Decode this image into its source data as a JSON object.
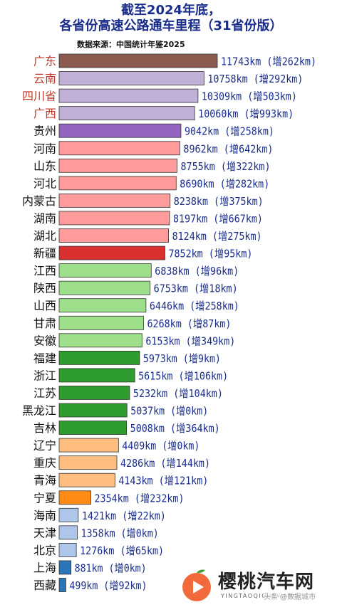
{
  "chart_data": {
    "type": "bar",
    "orientation": "horizontal",
    "title": "截至2024年底，",
    "subtitle": "各省份高速公路通车里程（31省份版）",
    "source": "数据来源：中国统计年鉴2025",
    "unit": "km",
    "categories": [
      "广东",
      "云南",
      "四川省",
      "广西",
      "贵州",
      "河南",
      "山东",
      "河北",
      "内蒙古",
      "湖南",
      "湖北",
      "新疆",
      "江西",
      "陕西",
      "山西",
      "甘肃",
      "安徽",
      "福建",
      "浙江",
      "江苏",
      "黑龙江",
      "吉林",
      "辽宁",
      "重庆",
      "青海",
      "宁夏",
      "海南",
      "天津",
      "北京",
      "上海",
      "西藏"
    ],
    "values": [
      11743,
      10758,
      10309,
      10060,
      9042,
      8962,
      8755,
      8690,
      8238,
      8197,
      8124,
      7852,
      6838,
      6753,
      6446,
      6268,
      6153,
      5973,
      5615,
      5232,
      5037,
      5008,
      4409,
      4286,
      4143,
      2354,
      1421,
      1358,
      1276,
      881,
      499
    ],
    "increase": [
      262,
      292,
      503,
      993,
      258,
      642,
      322,
      282,
      375,
      667,
      275,
      95,
      96,
      18,
      258,
      87,
      349,
      9,
      106,
      104,
      0,
      364,
      0,
      144,
      121,
      232,
      22,
      0,
      65,
      0,
      92
    ],
    "labels": [
      "11743km (增262km)",
      "10758km (增292km)",
      "10309km (增503km)",
      "10060km (增993km)",
      "9042km (增258km)",
      "8962km (增642km)",
      "8755km (增322km)",
      "8690km (增282km)",
      "8238km (增375km)",
      "8197km (增667km)",
      "8124km (增275km)",
      "7852km (增95km)",
      "6838km (增96km)",
      "6753km (增18km)",
      "6446km (增258km)",
      "6268km (增87km)",
      "6153km (增349km)",
      "5973km (增9km)",
      "5615km (增106km)",
      "5232km (增104km)",
      "5037km (增0km)",
      "5008km (增364km)",
      "4409km (增0km)",
      "4286km (增144km)",
      "4143km (增121km)",
      "2354km (增232km)",
      "1421km (增22km)",
      "1358km (增0km)",
      "1276km (增65km)",
      "881km (增0km)",
      "499km (增92km)"
    ],
    "colors": [
      "#8c5b50",
      "#c0b0d8",
      "#c0b0d8",
      "#c0b0d8",
      "#9364c0",
      "#ff9b9b",
      "#ff9b9b",
      "#ff9b9b",
      "#ff9b9b",
      "#ff9b9b",
      "#ff9b9b",
      "#d92f2f",
      "#9ddf8a",
      "#9ddf8a",
      "#9ddf8a",
      "#9ddf8a",
      "#9ddf8a",
      "#2e9c2e",
      "#2e9c2e",
      "#2e9c2e",
      "#2e9c2e",
      "#2e9c2e",
      "#ffbe80",
      "#ffbe80",
      "#ffbe80",
      "#ff8a14",
      "#aec6ea",
      "#aec6ea",
      "#aec6ea",
      "#2a76b8",
      "#2a76b8"
    ],
    "label_colors": [
      "#c0392b",
      "#c0392b",
      "#c0392b",
      "#c0392b",
      "#111111",
      "#111111",
      "#111111",
      "#111111",
      "#111111",
      "#111111",
      "#111111",
      "#111111",
      "#111111",
      "#111111",
      "#111111",
      "#111111",
      "#111111",
      "#111111",
      "#111111",
      "#111111",
      "#111111",
      "#111111",
      "#111111",
      "#111111",
      "#111111",
      "#111111",
      "#111111",
      "#111111",
      "#111111",
      "#111111",
      "#111111"
    ],
    "value_label_color": "#1a2d8c",
    "grid": false,
    "legend": "none"
  },
  "watermark": {
    "text": "樱桃汽车网",
    "sub": "YINGTAOQICHEWANG",
    "tag": "头条 @数据城市"
  }
}
